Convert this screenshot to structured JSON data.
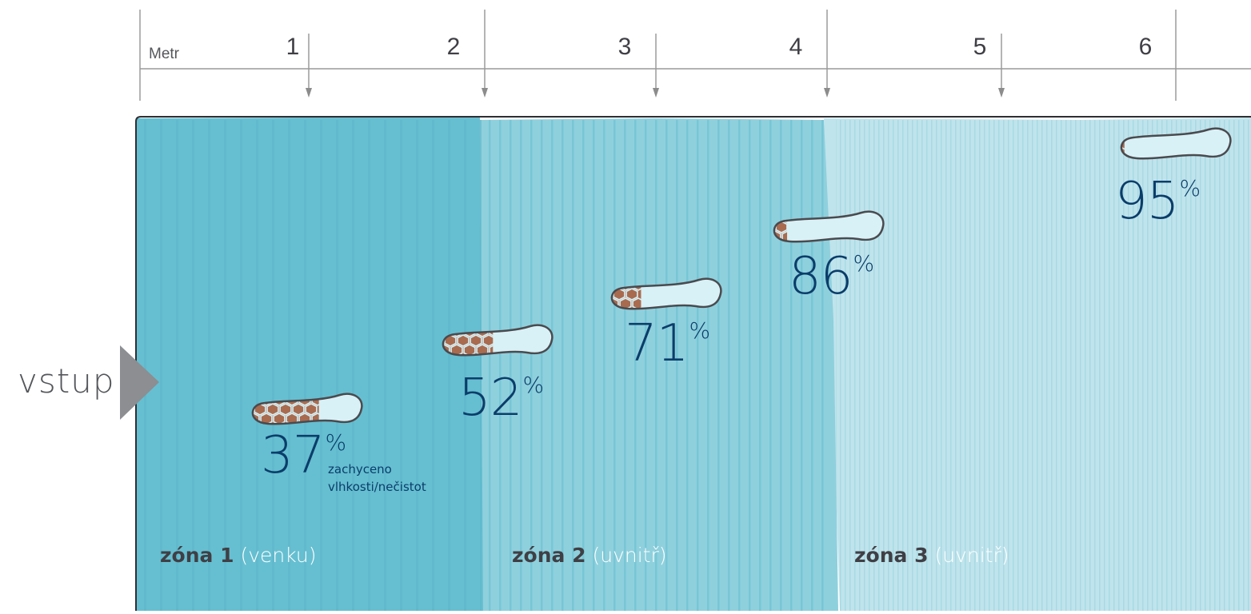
{
  "ruler": {
    "unit_label": "Metr",
    "ticks": [
      "1",
      "2",
      "3",
      "4",
      "5",
      "6"
    ]
  },
  "entry_label": "vstup",
  "footprints": [
    {
      "percent": "37",
      "sign": "%",
      "dirt_fraction": 0.63
    },
    {
      "percent": "52",
      "sign": "%",
      "dirt_fraction": 0.48
    },
    {
      "percent": "71",
      "sign": "%",
      "dirt_fraction": 0.29
    },
    {
      "percent": "86",
      "sign": "%",
      "dirt_fraction": 0.14
    },
    {
      "percent": "95",
      "sign": "%",
      "dirt_fraction": 0.05
    }
  ],
  "caption": {
    "line1": "zachyceno",
    "line2": "vlhkosti/nečistot"
  },
  "zones": [
    {
      "name": "zóna 1",
      "note": "(venku)",
      "color": "#66bfd1",
      "note_color": "#ffffff"
    },
    {
      "name": "zóna 2",
      "note": "(uvnitř)",
      "color": "#8fd0dd",
      "note_color": "#ffffff"
    },
    {
      "name": "zóna 3",
      "note": "(uvnitř)",
      "color": "#c0e4ec",
      "note_color": "#ffffff"
    }
  ],
  "colors": {
    "dirt": "#a96b4f",
    "percent_text": "#0b3d6a",
    "ruler": "#9a9a9a",
    "arrow": "#8c8c8c"
  }
}
